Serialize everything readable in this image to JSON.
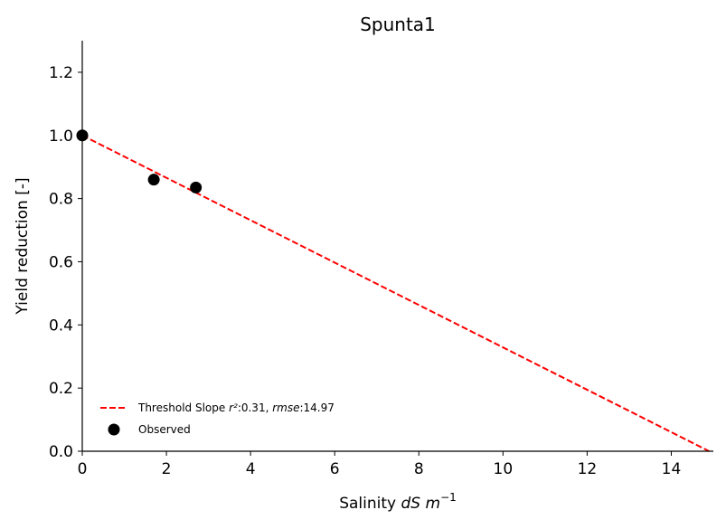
{
  "chart_data": {
    "type": "scatter",
    "title": "Spunta1",
    "xlabel": {
      "prefix": "Salinity ",
      "italic": "dS m",
      "sup": "−1"
    },
    "ylabel": "Yield reduction [-]",
    "xlim": [
      0,
      15
    ],
    "ylim": [
      0,
      1.3
    ],
    "xticks": [
      0,
      2,
      4,
      6,
      8,
      10,
      12,
      14
    ],
    "yticks": [
      0.0,
      0.2,
      0.4,
      0.6,
      0.8,
      1.0,
      1.2
    ],
    "ytick_labels": [
      "0.0",
      "0.2",
      "0.4",
      "0.6",
      "0.8",
      "1.0",
      "1.2"
    ],
    "grid": false,
    "legend_position": "lower-left",
    "series": [
      {
        "name": "Threshold Slope",
        "legend_parts": [
          "Threshold Slope ",
          "r²",
          ":0.31, ",
          "rmse",
          ":14.97"
        ],
        "kind": "line",
        "style": "dashed",
        "color": "#ff0000",
        "x": [
          0,
          14.9
        ],
        "y": [
          1.0,
          0.0
        ]
      },
      {
        "name": "Observed",
        "kind": "scatter",
        "color": "#000000",
        "x": [
          0.0,
          1.7,
          2.7
        ],
        "y": [
          1.0,
          0.86,
          0.835
        ]
      }
    ]
  }
}
